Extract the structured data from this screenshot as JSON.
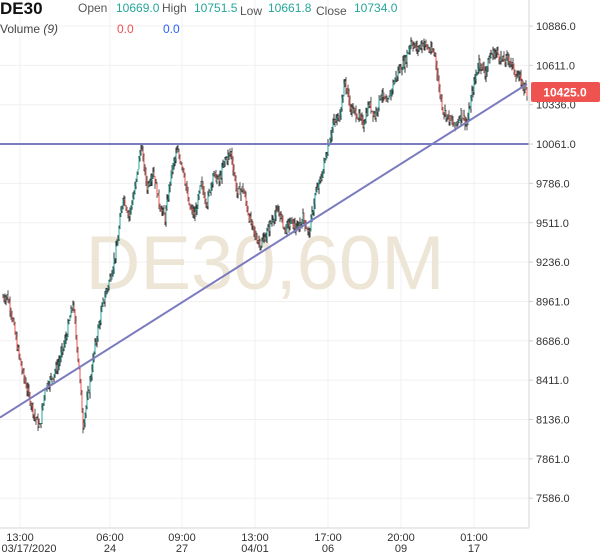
{
  "header": {
    "symbol": "DE30",
    "open_label": "Open",
    "open_value": "10669.0",
    "high_label": "High",
    "high_value": "10751.5",
    "low_label": "Low",
    "low_value": "10661.8",
    "close_label": "Close",
    "close_value": "10734.0",
    "volume_label": "Volume",
    "volume_period": "(9)",
    "volume_value_1": "0.0",
    "volume_value_2": "0.0"
  },
  "watermark": "DE30,60M",
  "current_price": "10425.0",
  "colors": {
    "up": "#26a69a",
    "down": "#ef5350",
    "line": "#7b7bbf",
    "price_tag": "#ef5350",
    "watermark": "#ede5d6",
    "grid": "#f0f0f0"
  },
  "chart_data": {
    "type": "candlestick",
    "title": "",
    "ylim": [
      7400,
      10980
    ],
    "y_ticks": [
      "10886.0",
      "10611.0",
      "10336.0",
      "10061.0",
      "9786.0",
      "9511.0",
      "9236.0",
      "8961.0",
      "8686.0",
      "8411.0",
      "8136.0",
      "7861.0",
      "7586.0"
    ],
    "x_ticks": [
      {
        "time": "13:00",
        "date": "03/17/2020"
      },
      {
        "time": "06:00",
        "date": "24"
      },
      {
        "time": "09:00",
        "date": "27"
      },
      {
        "time": "13:00",
        "date": "04/01"
      },
      {
        "time": "17:00",
        "date": "06"
      },
      {
        "time": "20:00",
        "date": "09"
      },
      {
        "time": "01:00",
        "date": "17"
      }
    ],
    "anchors": [
      [
        0,
        8990
      ],
      [
        4,
        9000
      ],
      [
        8,
        8900
      ],
      [
        14,
        8650
      ],
      [
        20,
        8450
      ],
      [
        26,
        8300
      ],
      [
        32,
        8150
      ],
      [
        37,
        8080
      ],
      [
        42,
        8360
      ],
      [
        48,
        8420
      ],
      [
        55,
        8520
      ],
      [
        62,
        8680
      ],
      [
        70,
        8950
      ],
      [
        76,
        8500
      ],
      [
        80,
        8100
      ],
      [
        86,
        8350
      ],
      [
        92,
        8650
      ],
      [
        100,
        8950
      ],
      [
        108,
        9150
      ],
      [
        114,
        9350
      ],
      [
        120,
        9700
      ],
      [
        126,
        9560
      ],
      [
        132,
        9750
      ],
      [
        138,
        10050
      ],
      [
        144,
        9760
      ],
      [
        150,
        9880
      ],
      [
        156,
        9650
      ],
      [
        162,
        9540
      ],
      [
        168,
        9850
      ],
      [
        174,
        10010
      ],
      [
        180,
        9900
      ],
      [
        186,
        9620
      ],
      [
        192,
        9560
      ],
      [
        198,
        9780
      ],
      [
        204,
        9650
      ],
      [
        210,
        9850
      ],
      [
        216,
        9800
      ],
      [
        222,
        9950
      ],
      [
        228,
        10000
      ],
      [
        234,
        9720
      ],
      [
        240,
        9750
      ],
      [
        246,
        9550
      ],
      [
        252,
        9420
      ],
      [
        258,
        9360
      ],
      [
        264,
        9440
      ],
      [
        270,
        9550
      ],
      [
        276,
        9590
      ],
      [
        282,
        9460
      ],
      [
        288,
        9520
      ],
      [
        294,
        9460
      ],
      [
        300,
        9550
      ],
      [
        306,
        9430
      ],
      [
        312,
        9700
      ],
      [
        318,
        9820
      ],
      [
        324,
        10020
      ],
      [
        330,
        10200
      ],
      [
        336,
        10250
      ],
      [
        342,
        10500
      ],
      [
        348,
        10300
      ],
      [
        354,
        10270
      ],
      [
        360,
        10200
      ],
      [
        366,
        10340
      ],
      [
        372,
        10260
      ],
      [
        378,
        10420
      ],
      [
        384,
        10330
      ],
      [
        390,
        10480
      ],
      [
        396,
        10580
      ],
      [
        402,
        10640
      ],
      [
        408,
        10780
      ],
      [
        414,
        10720
      ],
      [
        420,
        10770
      ],
      [
        426,
        10720
      ],
      [
        432,
        10690
      ],
      [
        436,
        10450
      ],
      [
        440,
        10300
      ],
      [
        446,
        10240
      ],
      [
        452,
        10180
      ],
      [
        458,
        10280
      ],
      [
        464,
        10200
      ],
      [
        470,
        10450
      ],
      [
        476,
        10640
      ],
      [
        482,
        10560
      ],
      [
        488,
        10690
      ],
      [
        494,
        10700
      ],
      [
        500,
        10640
      ],
      [
        506,
        10660
      ],
      [
        512,
        10560
      ],
      [
        518,
        10500
      ],
      [
        524,
        10425
      ]
    ],
    "horizontal_line": 10061,
    "trend_line": [
      [
        0,
        8150
      ],
      [
        524,
        10480
      ]
    ]
  }
}
